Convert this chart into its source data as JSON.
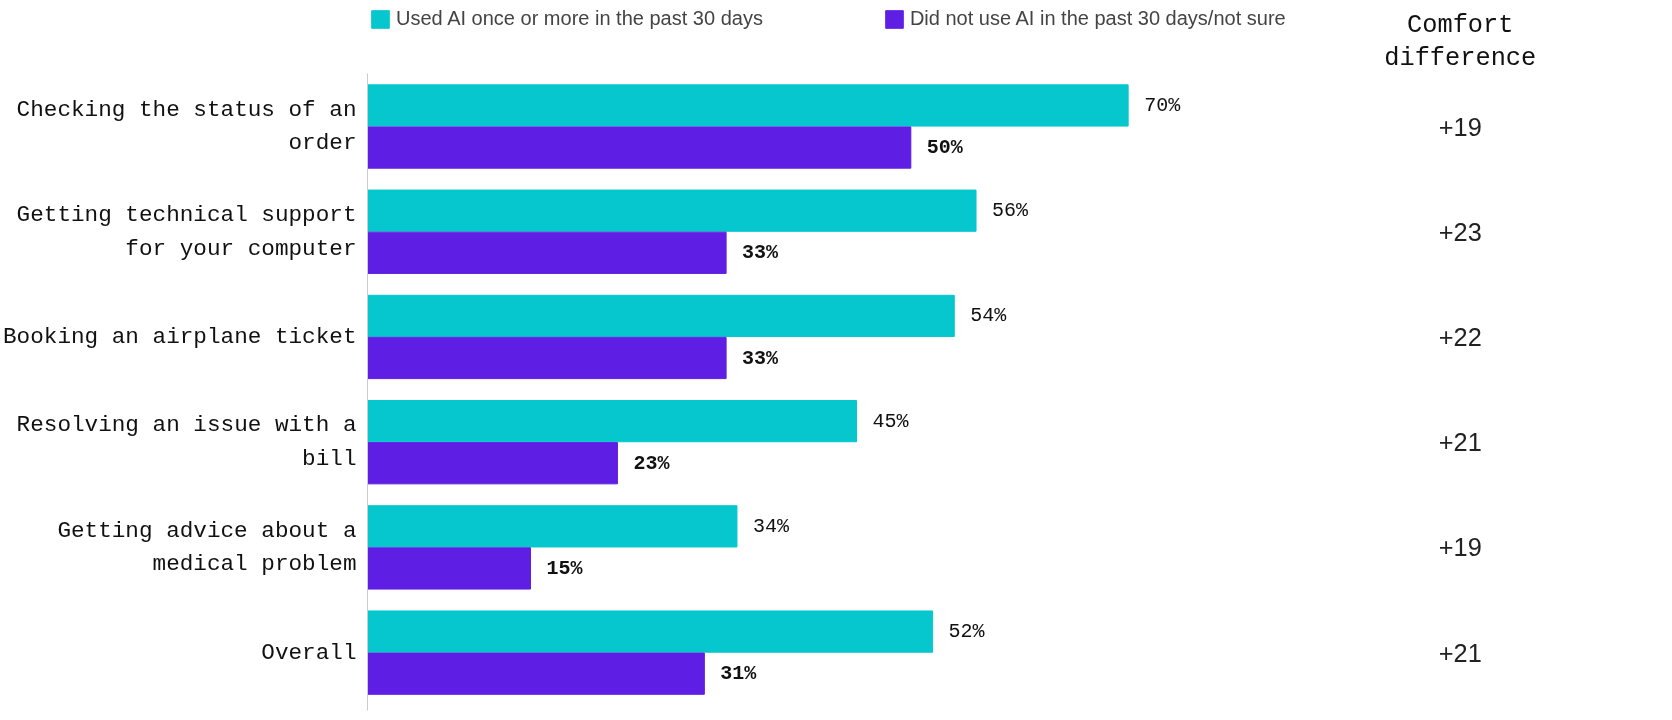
{
  "chart_data": {
    "type": "bar",
    "orientation": "horizontal",
    "categories": [
      "Checking the status of an order",
      "Getting technical support for your computer",
      "Booking an airplane ticket",
      "Resolving an issue with a bill",
      "Getting advice about a medical problem",
      "Overall"
    ],
    "series": [
      {
        "name": "Used AI once or more in the past 30 days",
        "color": "#05c7cd",
        "values": [
          70,
          56,
          54,
          45,
          34,
          52
        ],
        "value_labels": [
          "70%",
          "56%",
          "54%",
          "45%",
          "34%",
          "52%"
        ]
      },
      {
        "name": "Did not use AI in the past 30 days/not sure",
        "color": "#5f1ee4",
        "values": [
          50,
          33,
          33,
          23,
          15,
          31
        ],
        "value_labels": [
          "50%",
          "33%",
          "33%",
          "23%",
          "15%",
          "31%"
        ]
      }
    ],
    "tick_labels": "y",
    "grid": false,
    "legend": "top",
    "annotations": [
      "Comfort difference",
      "+19",
      "+23",
      "+22",
      "+21",
      "+19",
      "+21"
    ]
  }
}
